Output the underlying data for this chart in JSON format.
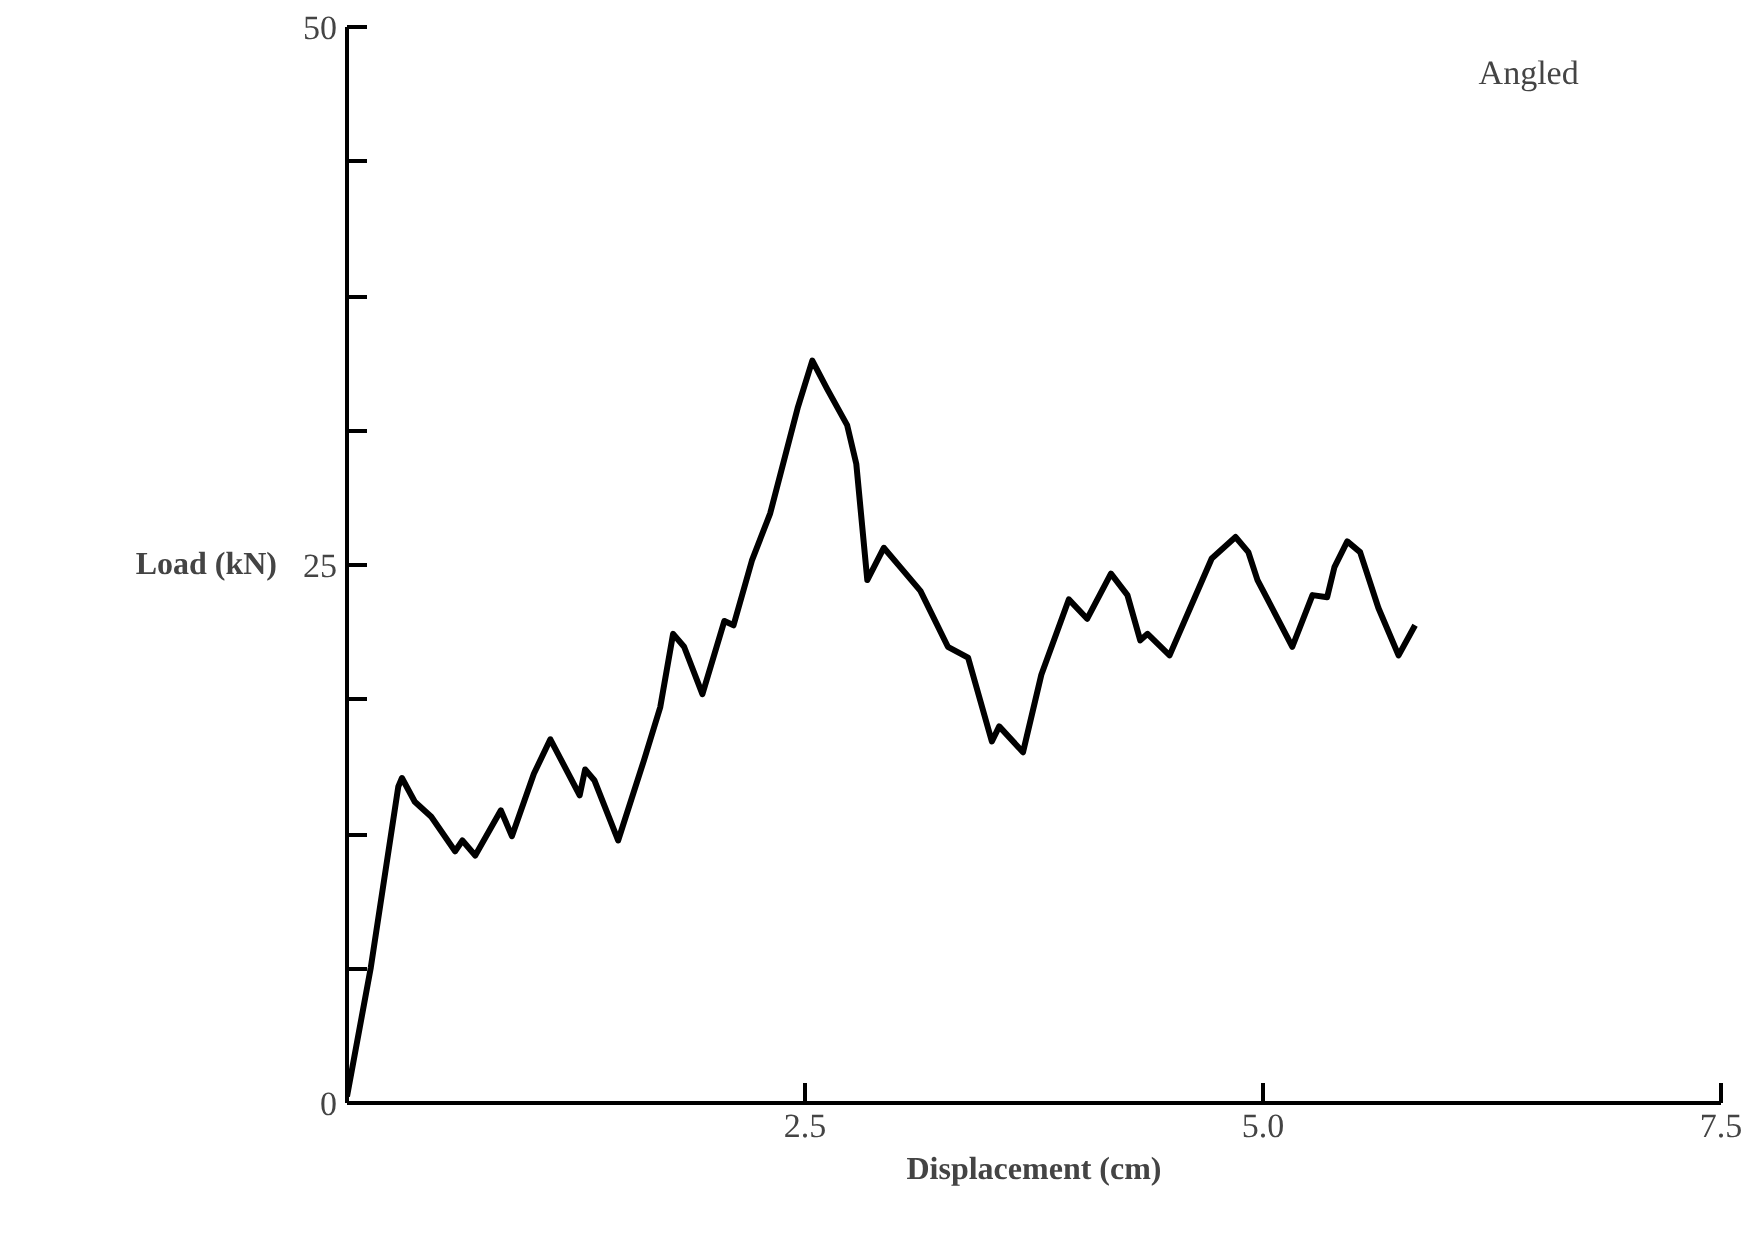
{
  "chart_data": {
    "type": "line",
    "xlabel": "Displacement (cm)",
    "ylabel": "Load (kN)",
    "annotations": [
      "Angled"
    ],
    "xlim": [
      0,
      7.5
    ],
    "ylim": [
      0,
      50
    ],
    "xticks": [
      2.5,
      {
        "value": 5,
        "label": "5.0"
      },
      7.5
    ],
    "yticks": [
      0,
      {
        "value": 6.25,
        "label": null
      },
      {
        "value": 12.5,
        "label": null
      },
      {
        "value": 18.75,
        "label": null
      },
      25,
      {
        "value": 31.25,
        "label": null
      },
      {
        "value": 37.5,
        "label": null
      },
      {
        "value": 43.75,
        "label": null
      },
      50
    ],
    "series": [
      {
        "color": "#000000",
        "x": [
          0,
          0.13,
          0.28,
          0.3,
          0.37,
          0.46,
          0.59,
          0.63,
          0.7,
          0.84,
          0.9,
          1.02,
          1.11,
          1.27,
          1.3,
          1.35,
          1.48,
          1.62,
          1.71,
          1.78,
          1.84,
          1.94,
          2.06,
          2.11,
          2.21,
          2.31,
          2.46,
          2.54,
          2.62,
          2.73,
          2.78,
          2.84,
          2.93,
          3.02,
          3.13,
          3.28,
          3.39,
          3.52,
          3.56,
          3.69,
          3.79,
          3.94,
          4.04,
          4.17,
          4.26,
          4.33,
          4.37,
          4.49,
          4.72,
          4.85,
          4.92,
          4.97,
          5.16,
          5.27,
          5.35,
          5.39,
          5.46,
          5.53,
          5.63,
          5.74,
          5.83
        ],
        "values": [
          0.3,
          6.3,
          14.7,
          15.1,
          14.0,
          13.3,
          11.7,
          12.2,
          11.5,
          13.6,
          12.4,
          15.3,
          16.9,
          14.3,
          15.5,
          15.0,
          12.2,
          15.9,
          18.4,
          21.8,
          21.2,
          19.0,
          22.4,
          22.2,
          25.2,
          27.4,
          32.3,
          34.5,
          33.2,
          31.5,
          29.7,
          24.3,
          25.8,
          24.9,
          23.8,
          21.2,
          20.7,
          16.8,
          17.5,
          16.3,
          19.9,
          23.4,
          22.5,
          24.6,
          23.6,
          21.5,
          21.8,
          20.8,
          25.3,
          26.3,
          25.6,
          24.3,
          21.2,
          23.6,
          23.5,
          24.9,
          26.1,
          25.6,
          23.0,
          20.8,
          22.2
        ]
      }
    ]
  }
}
